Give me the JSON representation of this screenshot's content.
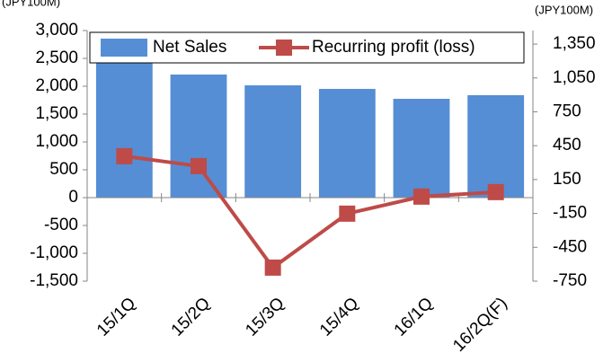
{
  "chart_data": {
    "type": "bar_line",
    "y_unit_label": "(JPY100M)",
    "y2_unit_label": "(JPY100M)",
    "categories": [
      "15/1Q",
      "15/2Q",
      "15/3Q",
      "15/4Q",
      "16/1Q",
      "16/2Q(F)"
    ],
    "series": [
      {
        "name": "Net Sales",
        "type": "bar",
        "color": "#558ed5",
        "values": [
          2450,
          2210,
          2016,
          1952,
          1774,
          1839
        ]
      },
      {
        "name": "Recurring profit (loss)",
        "type": "line",
        "color": "#be4b48",
        "axis": "y2",
        "values": [
          357,
          269,
          -630,
          -152,
          -1,
          39
        ]
      }
    ],
    "ylim": [
      -1500,
      3000
    ],
    "yticks": [
      {
        "value": -1500,
        "label": "-1,500"
      },
      {
        "value": -1000,
        "label": "-1,000"
      },
      -500,
      0,
      500,
      {
        "value": 1000,
        "label": "1,000"
      },
      {
        "value": 1500,
        "label": "1,500"
      },
      {
        "value": 2000,
        "label": "2,000"
      },
      {
        "value": 2500,
        "label": "2,500"
      },
      {
        "value": 3000,
        "label": "3,000"
      }
    ],
    "y2lim": [
      -750,
      1470
    ],
    "y2ticks": [
      -750,
      -450,
      -150,
      150,
      450,
      750,
      {
        "value": 1050,
        "label": "1,050"
      },
      {
        "value": 1350,
        "label": "1,350"
      }
    ],
    "negative_tick_color": "#ff0000",
    "grid": false,
    "legend": "top"
  }
}
